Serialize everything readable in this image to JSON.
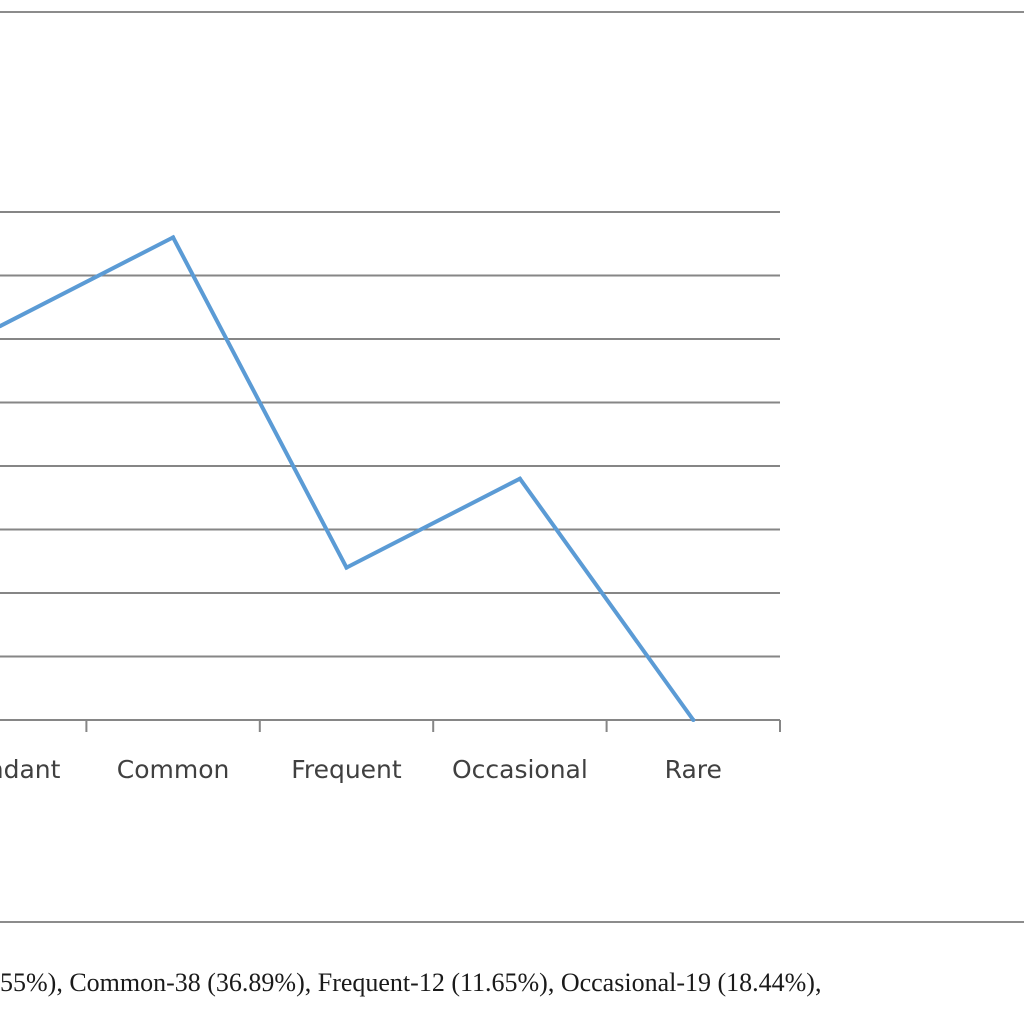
{
  "chart_data": {
    "type": "line",
    "categories": [
      "Abundant",
      "Common",
      "Frequent",
      "Occasional",
      "Rare"
    ],
    "series": [
      {
        "values": [
          31,
          38,
          12,
          19,
          0
        ],
        "color": "#5b9bd5"
      }
    ],
    "ylim": [
      0,
      40
    ],
    "ytick_step": 5,
    "grid": true,
    "legend": "none",
    "colors": {
      "line": "#5b9bd5",
      "grid": "#868686",
      "axis": "#868686",
      "border": "#8c8c8c",
      "tick_text": "#404040"
    }
  },
  "caption": "55%), Common-38 (36.89%), Frequent-12 (11.65%), Occasional-19 (18.44%),"
}
